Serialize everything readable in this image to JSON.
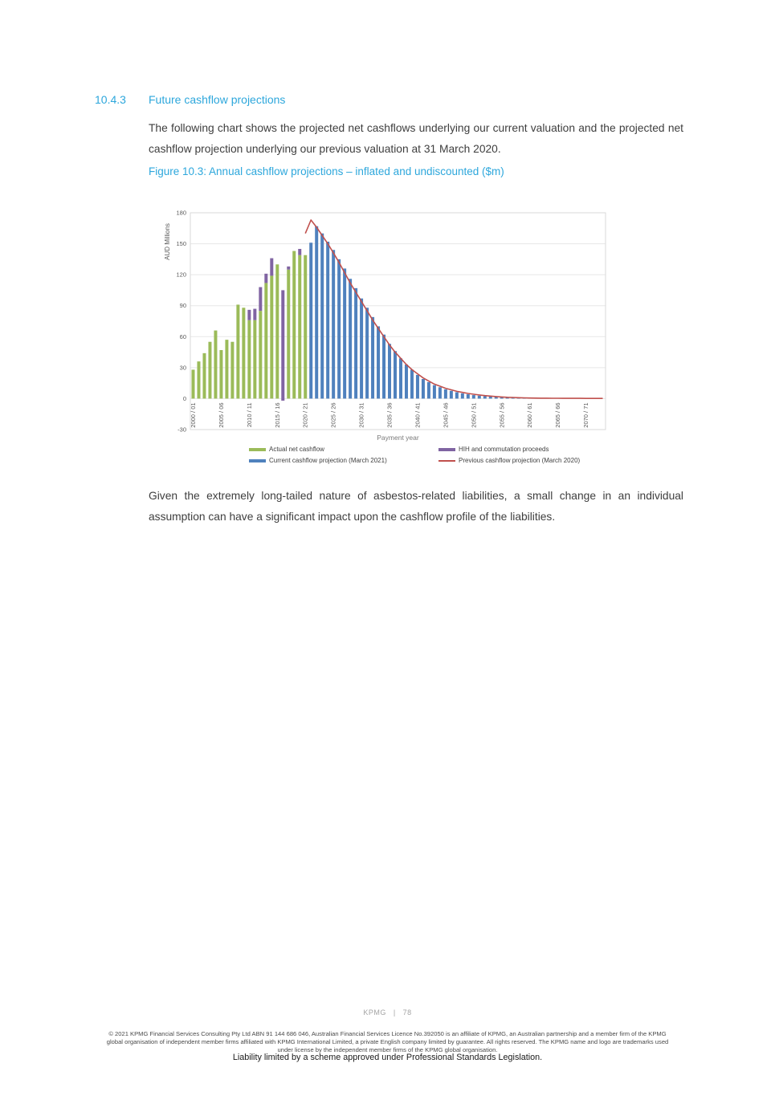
{
  "page": {
    "accent_color": "#2da7dc",
    "section_number": "10.4.3",
    "section_title": "Future cashflow projections",
    "intro_paragraph": "The following chart shows the projected net cashflows underlying our current valuation and the projected net cashflow projection underlying our previous valuation at 31 March 2020.",
    "closing_paragraph": "Given the extremely long-tailed nature of asbestos-related liabilities, a small change in an individual assumption can have a significant impact upon the cashflow profile of the liabilities.",
    "footer": {
      "page_label": "KPMG | 78",
      "legal_text": "© 2021 KPMG Financial Services Consulting Pty Ltd ABN 91 144 686 046, Australian Financial Services Licence No.392050 is an affiliate of KPMG, an Australian partnership and a member firm of the KPMG global organisation of independent member firms affiliated with KPMG International Limited, a private English company limited by guarantee. All rights reserved. The KPMG name and logo are trademarks used under license by the independent member firms of the KPMG global organisation.",
      "liability_text": "Liability limited by a scheme approved under Professional Standards Legislation."
    }
  },
  "chart_data": {
    "type": "bar",
    "title": "Figure 10.3: Annual cashflow projections – inflated and undiscounted ($m)",
    "xlabel": "Payment year",
    "ylabel": "AUD  Millions",
    "ylim": [
      -30,
      180
    ],
    "ytick_step": 30,
    "x_tick_every": 5,
    "grid": true,
    "legend_position": "bottom",
    "categories": [
      "2000 / 01",
      "2001 / 02",
      "2002 / 03",
      "2003 / 04",
      "2004 / 05",
      "2005 / 06",
      "2006 / 07",
      "2007 / 08",
      "2008 / 09",
      "2009 / 10",
      "2010 / 11",
      "2011 / 12",
      "2012 / 13",
      "2013 / 14",
      "2014 / 15",
      "2015 / 16",
      "2016 / 17",
      "2017 / 18",
      "2018 / 19",
      "2019 / 20",
      "2020 / 21",
      "2021 / 22",
      "2022 / 23",
      "2023 / 24",
      "2024 / 25",
      "2025 / 26",
      "2026 / 27",
      "2027 / 28",
      "2028 / 29",
      "2029 / 30",
      "2030 / 31",
      "2031 / 32",
      "2032 / 33",
      "2033 / 34",
      "2034 / 35",
      "2035 / 36",
      "2036 / 37",
      "2037 / 38",
      "2038 / 39",
      "2039 / 40",
      "2040 / 41",
      "2041 / 42",
      "2042 / 43",
      "2043 / 44",
      "2044 / 45",
      "2045 / 46",
      "2046 / 47",
      "2047 / 48",
      "2048 / 49",
      "2049 / 50",
      "2050 / 51",
      "2051 / 52",
      "2052 / 53",
      "2053 / 54",
      "2054 / 55",
      "2055 / 56",
      "2056 / 57",
      "2057 / 58",
      "2058 / 59",
      "2059 / 60",
      "2060 / 61",
      "2061 / 62",
      "2062 / 63",
      "2063 / 64",
      "2064 / 65",
      "2065 / 66",
      "2066 / 67",
      "2067 / 68",
      "2068 / 69",
      "2069 / 70",
      "2070 / 71",
      "2071 / 72",
      "2072 / 73",
      "2073 / 74"
    ],
    "series": [
      {
        "name": "Actual net cashflow",
        "type": "bar",
        "color": "#9bbb59",
        "start_index": 0,
        "values": [
          28,
          36,
          44,
          55,
          66,
          47,
          57,
          55,
          91,
          88,
          76,
          76,
          85,
          112,
          119,
          130,
          0,
          125,
          143,
          139,
          139
        ]
      },
      {
        "name": "HIH and commutation proceeds",
        "type": "bar-segment",
        "color": "#8064a2",
        "segments": [
          {
            "category": "2010 / 11",
            "index": 10,
            "from": 76,
            "to": 86
          },
          {
            "category": "2011 / 12",
            "index": 11,
            "from": 76,
            "to": 87
          },
          {
            "category": "2012 / 13",
            "index": 12,
            "from": 85,
            "to": 108
          },
          {
            "category": "2013 / 14",
            "index": 13,
            "from": 112,
            "to": 121
          },
          {
            "category": "2014 / 15",
            "index": 14,
            "from": 119,
            "to": 136
          },
          {
            "category": "2016 / 17",
            "index": 16,
            "from": -2,
            "to": 105
          },
          {
            "category": "2017 / 18",
            "index": 17,
            "from": 125,
            "to": 128
          },
          {
            "category": "2019 / 20",
            "index": 19,
            "from": 139,
            "to": 145
          }
        ]
      },
      {
        "name": "Current cashflow projection (March 2021)",
        "type": "bar",
        "color": "#4f81bd",
        "start_index": 21,
        "values": [
          151,
          167,
          160,
          152,
          144,
          135,
          126,
          116,
          107,
          97,
          88,
          79,
          70,
          62,
          53,
          46,
          39,
          33,
          28,
          23,
          19,
          16,
          13,
          11,
          9,
          7.5,
          6.2,
          5.1,
          4.2,
          3.4,
          2.8,
          2.3,
          1.9,
          1.5,
          1.2,
          1,
          0.8,
          0.6,
          0.5,
          0.4
        ]
      },
      {
        "name": "Previous cashflow projection (March 2020)",
        "type": "line",
        "color": "#c0504d",
        "start_index": 20,
        "values": [
          160,
          173,
          166,
          158,
          150,
          141,
          132,
          122,
          112,
          103,
          94,
          85,
          76,
          68,
          60,
          52,
          45,
          39,
          33,
          28,
          24,
          20,
          17,
          14,
          12,
          10,
          8.5,
          7,
          6,
          5,
          4.2,
          3.5,
          2.9,
          2.4,
          2,
          1.6,
          1.3,
          1.1,
          0.9,
          0.7,
          0.6,
          0.5,
          0.45,
          0.4,
          0.35,
          0.3,
          0.28,
          0.26,
          0.24,
          0.22,
          0.2,
          0.19,
          0.18,
          0.17
        ]
      }
    ]
  }
}
